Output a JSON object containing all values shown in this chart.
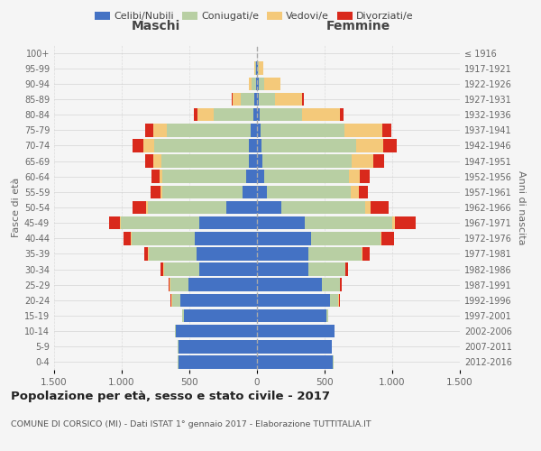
{
  "age_groups": [
    "0-4",
    "5-9",
    "10-14",
    "15-19",
    "20-24",
    "25-29",
    "30-34",
    "35-39",
    "40-44",
    "45-49",
    "50-54",
    "55-59",
    "60-64",
    "65-69",
    "70-74",
    "75-79",
    "80-84",
    "85-89",
    "90-94",
    "95-99",
    "100+"
  ],
  "birth_years": [
    "2012-2016",
    "2007-2011",
    "2002-2006",
    "1997-2001",
    "1992-1996",
    "1987-1991",
    "1982-1986",
    "1977-1981",
    "1972-1976",
    "1967-1971",
    "1962-1966",
    "1957-1961",
    "1952-1956",
    "1947-1951",
    "1942-1946",
    "1937-1941",
    "1932-1936",
    "1927-1931",
    "1922-1926",
    "1917-1921",
    "≤ 1916"
  ],
  "males": {
    "celibi": [
      580,
      580,
      600,
      540,
      570,
      510,
      430,
      450,
      460,
      430,
      230,
      110,
      80,
      60,
      60,
      50,
      30,
      20,
      10,
      5,
      0
    ],
    "coniugati": [
      5,
      5,
      5,
      15,
      60,
      130,
      260,
      350,
      470,
      580,
      580,
      590,
      620,
      650,
      700,
      620,
      290,
      100,
      30,
      10,
      0
    ],
    "vedovi": [
      0,
      0,
      0,
      0,
      5,
      5,
      5,
      5,
      5,
      5,
      10,
      15,
      20,
      60,
      80,
      100,
      120,
      60,
      20,
      5,
      0
    ],
    "divorziati": [
      0,
      0,
      0,
      0,
      5,
      10,
      20,
      30,
      50,
      80,
      100,
      70,
      60,
      60,
      80,
      60,
      30,
      5,
      0,
      0,
      0
    ]
  },
  "females": {
    "nubili": [
      560,
      550,
      570,
      510,
      540,
      480,
      380,
      380,
      400,
      350,
      180,
      70,
      50,
      40,
      35,
      25,
      20,
      15,
      10,
      5,
      0
    ],
    "coniugate": [
      5,
      5,
      5,
      15,
      60,
      130,
      270,
      390,
      510,
      650,
      620,
      620,
      630,
      660,
      700,
      620,
      310,
      120,
      40,
      10,
      0
    ],
    "vedove": [
      0,
      0,
      0,
      0,
      5,
      5,
      5,
      10,
      10,
      20,
      40,
      60,
      80,
      160,
      200,
      280,
      280,
      200,
      120,
      30,
      0
    ],
    "divorziate": [
      0,
      0,
      0,
      0,
      5,
      10,
      20,
      50,
      90,
      150,
      130,
      70,
      70,
      80,
      100,
      70,
      30,
      10,
      5,
      0,
      0
    ]
  },
  "colors": {
    "celibi": "#4472c4",
    "coniugati": "#b8cfa3",
    "vedovi": "#f4c97a",
    "divorziati": "#d9291c"
  },
  "title": "Popolazione per età, sesso e stato civile - 2017",
  "subtitle": "COMUNE DI CORSICO (MI) - Dati ISTAT 1° gennaio 2017 - Elaborazione TUTTITALIA.IT",
  "xlabel_left": "Maschi",
  "xlabel_right": "Femmine",
  "ylabel_left": "Fasce di età",
  "ylabel_right": "Anni di nascita",
  "xlim": 1500,
  "background_color": "#f5f5f5",
  "grid_color": "#cccccc",
  "legend_labels": [
    "Celibi/Nubili",
    "Coniugati/e",
    "Vedovi/e",
    "Divorziati/e"
  ]
}
